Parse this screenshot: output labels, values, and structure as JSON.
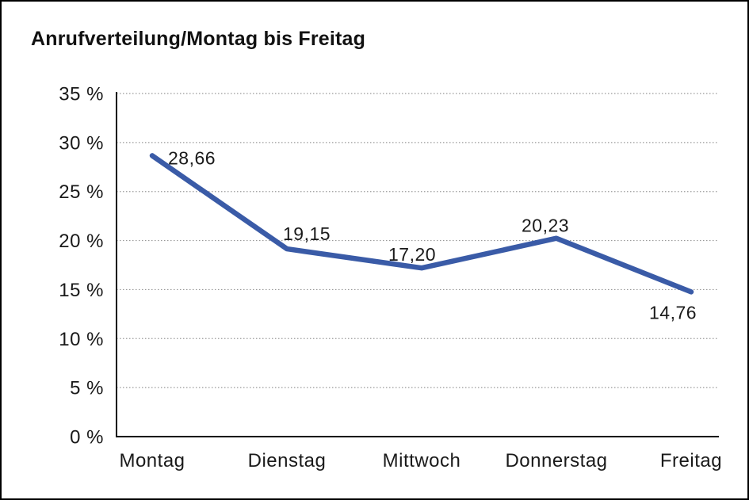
{
  "title": "Anrufverteilung/Montag bis Freitag",
  "chart_data": {
    "type": "line",
    "title": "Anrufverteilung/Montag bis Freitag",
    "categories": [
      "Montag",
      "Dienstag",
      "Mittwoch",
      "Donnerstag",
      "Freitag"
    ],
    "values": [
      28.66,
      19.15,
      17.2,
      20.23,
      14.76
    ],
    "value_labels": [
      "28,66",
      "19,15",
      "17,20",
      "20,23",
      "14,76"
    ],
    "xlabel": "",
    "ylabel": "",
    "ylim": [
      0,
      35
    ],
    "yticks": [
      {
        "value": 35,
        "label": "35 %"
      },
      {
        "value": 30,
        "label": "30 %"
      },
      {
        "value": 25,
        "label": "25 %"
      },
      {
        "value": 20,
        "label": "20 %"
      },
      {
        "value": 15,
        "label": "15 %"
      },
      {
        "value": 10,
        "label": "10 %"
      },
      {
        "value": 5,
        "label": "5 %"
      },
      {
        "value": 0,
        "label": "0 %"
      }
    ],
    "grid": "horizontal-dotted",
    "legend": "none",
    "colors": {
      "line": "#3A5BA7",
      "axis": "#000000",
      "gridline": "#999999",
      "text": "#1a1a1a",
      "background": "#ffffff",
      "frame_border": "#000000"
    }
  }
}
